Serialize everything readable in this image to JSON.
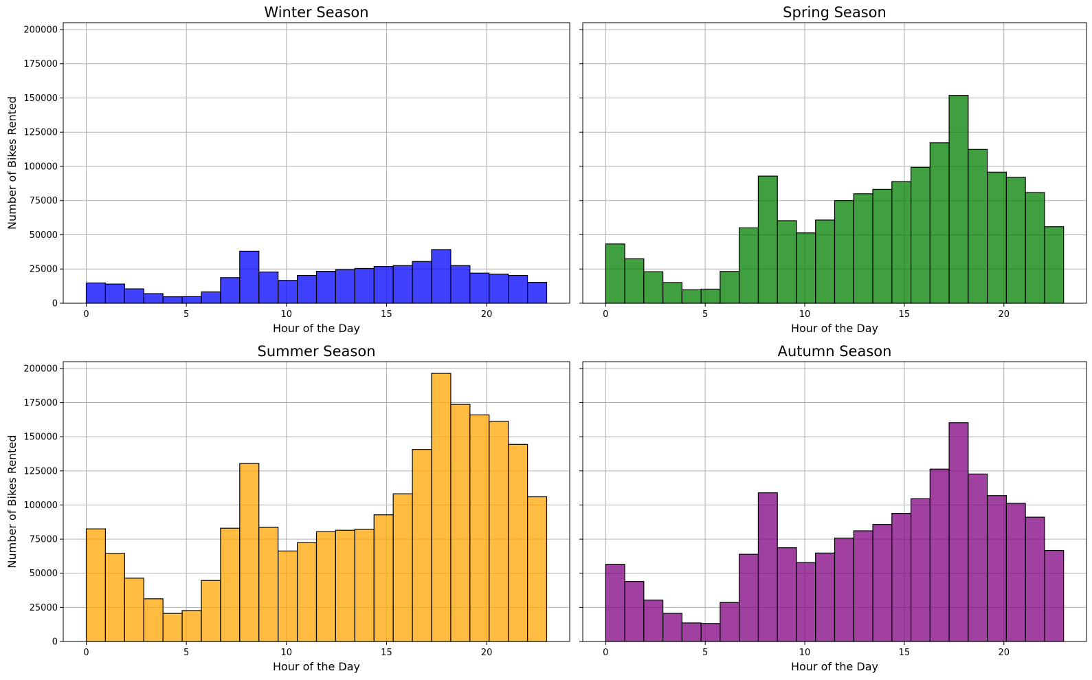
{
  "chart_data": [
    {
      "type": "bar",
      "title": "Winter Season",
      "xlabel": "Hour of the Day",
      "ylabel": "Number of Bikes Rented",
      "color": "#0000ff",
      "xlim": [
        -1.15,
        24.15
      ],
      "ylim": [
        0,
        205000
      ],
      "xticks": [
        0,
        5,
        10,
        15,
        20
      ],
      "yticks": [
        0,
        25000,
        50000,
        75000,
        100000,
        125000,
        150000,
        175000,
        200000
      ],
      "show_yticklabels": true,
      "grid": true,
      "categories": [
        0,
        1,
        2,
        3,
        4,
        5,
        6,
        7,
        8,
        9,
        10,
        11,
        12,
        13,
        14,
        15,
        16,
        17,
        18,
        19,
        20,
        21,
        22,
        23
      ],
      "values": [
        14800,
        14000,
        10500,
        7000,
        4700,
        4800,
        8300,
        18700,
        38000,
        22800,
        16700,
        20300,
        23300,
        24600,
        25400,
        26800,
        27500,
        30500,
        39200,
        27500,
        22000,
        21300,
        20300,
        15300
      ]
    },
    {
      "type": "bar",
      "title": "Spring Season",
      "xlabel": "Hour of the Day",
      "ylabel": "",
      "color": "#008000",
      "xlim": [
        -1.15,
        24.15
      ],
      "ylim": [
        0,
        205000
      ],
      "xticks": [
        0,
        5,
        10,
        15,
        20
      ],
      "yticks": [
        0,
        25000,
        50000,
        75000,
        100000,
        125000,
        150000,
        175000,
        200000
      ],
      "show_yticklabels": false,
      "grid": true,
      "categories": [
        0,
        1,
        2,
        3,
        4,
        5,
        6,
        7,
        8,
        9,
        10,
        11,
        12,
        13,
        14,
        15,
        16,
        17,
        18,
        19,
        20,
        21,
        22,
        23
      ],
      "values": [
        43300,
        32500,
        23000,
        15100,
        9800,
        10300,
        23200,
        55100,
        92900,
        60300,
        51400,
        60800,
        75000,
        80000,
        83200,
        88900,
        99300,
        117200,
        151900,
        112400,
        95800,
        92000,
        80900,
        55900
      ]
    },
    {
      "type": "bar",
      "title": "Summer Season",
      "xlabel": "Hour of the Day",
      "ylabel": "Number of Bikes Rented",
      "color": "#ffa500",
      "xlim": [
        -1.15,
        24.15
      ],
      "ylim": [
        0,
        205000
      ],
      "xticks": [
        0,
        5,
        10,
        15,
        20
      ],
      "yticks": [
        0,
        25000,
        50000,
        75000,
        100000,
        125000,
        150000,
        175000,
        200000
      ],
      "show_yticklabels": true,
      "grid": true,
      "categories": [
        0,
        1,
        2,
        3,
        4,
        5,
        6,
        7,
        8,
        9,
        10,
        11,
        12,
        13,
        14,
        15,
        16,
        17,
        18,
        19,
        20,
        21,
        22,
        23
      ],
      "values": [
        82500,
        64500,
        46400,
        31300,
        20600,
        22700,
        44700,
        83000,
        130400,
        83600,
        66300,
        72400,
        80400,
        81500,
        82200,
        92800,
        108200,
        140700,
        196400,
        173700,
        166000,
        161400,
        144400,
        106000
      ]
    },
    {
      "type": "bar",
      "title": "Autumn Season",
      "xlabel": "Hour of the Day",
      "ylabel": "",
      "color": "#800080",
      "xlim": [
        -1.15,
        24.15
      ],
      "ylim": [
        0,
        205000
      ],
      "xticks": [
        0,
        5,
        10,
        15,
        20
      ],
      "yticks": [
        0,
        25000,
        50000,
        75000,
        100000,
        125000,
        150000,
        175000,
        200000
      ],
      "show_yticklabels": false,
      "grid": true,
      "categories": [
        0,
        1,
        2,
        3,
        4,
        5,
        6,
        7,
        8,
        9,
        10,
        11,
        12,
        13,
        14,
        15,
        16,
        17,
        18,
        19,
        20,
        21,
        22,
        23
      ],
      "values": [
        56600,
        44000,
        30300,
        20600,
        13600,
        13200,
        28600,
        63900,
        108900,
        68700,
        57800,
        64800,
        75800,
        81100,
        85800,
        93900,
        104600,
        126300,
        160300,
        122700,
        106900,
        101200,
        91100,
        66700
      ]
    }
  ]
}
